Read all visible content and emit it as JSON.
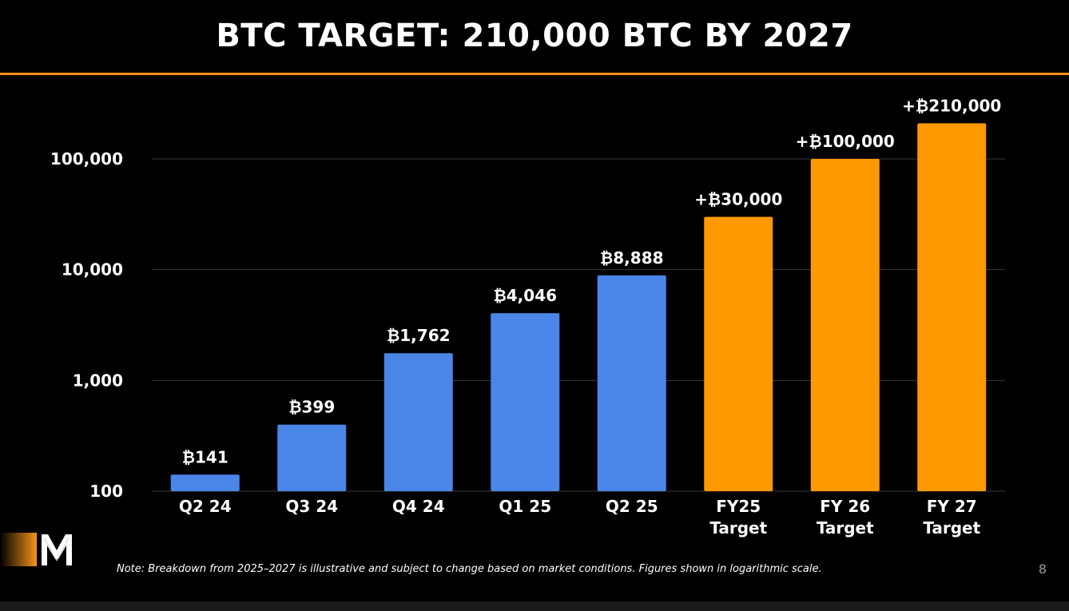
{
  "page": {
    "title": "BTC TARGET: 210,000 BTC BY 2027",
    "note": "Note: Breakdown from 2025–2027 is illustrative and subject to change based on market conditions. Figures shown in logarithmic scale.",
    "page_number": "8",
    "logo_icon": "m-logo-icon"
  },
  "colors": {
    "background": "#000000",
    "accent": "#f7931a",
    "actual_bar": "#4a86e8",
    "target_bar": "#ff9900",
    "gridline": "#3a3a3a",
    "text": "#ffffff"
  },
  "chart_data": {
    "type": "bar",
    "title": "BTC TARGET: 210,000 BTC BY 2027",
    "xlabel": "",
    "ylabel": "",
    "yscale": "log",
    "ylim": [
      100,
      100000
    ],
    "yticks": [
      100,
      1000,
      10000,
      100000
    ],
    "ytick_labels": [
      "100",
      "1,000",
      "10,000",
      "100,000"
    ],
    "grid": "horizontal",
    "legend": "none",
    "categories": [
      [
        "Q2 24"
      ],
      [
        "Q3 24"
      ],
      [
        "Q4 24"
      ],
      [
        "Q1 25"
      ],
      [
        "Q2 25"
      ],
      [
        "FY25",
        "Target"
      ],
      [
        "FY 26",
        "Target"
      ],
      [
        "FY 27",
        "Target"
      ]
    ],
    "values": [
      141,
      399,
      1762,
      4046,
      8888,
      30000,
      100000,
      210000
    ],
    "data_labels": [
      "₿141",
      "₿399",
      "₿1,762",
      "₿4,046",
      "₿8,888",
      "+₿30,000",
      "+₿100,000",
      "+₿210,000"
    ],
    "bar_kinds": [
      "actual",
      "actual",
      "actual",
      "actual",
      "actual",
      "target",
      "target",
      "target"
    ]
  }
}
